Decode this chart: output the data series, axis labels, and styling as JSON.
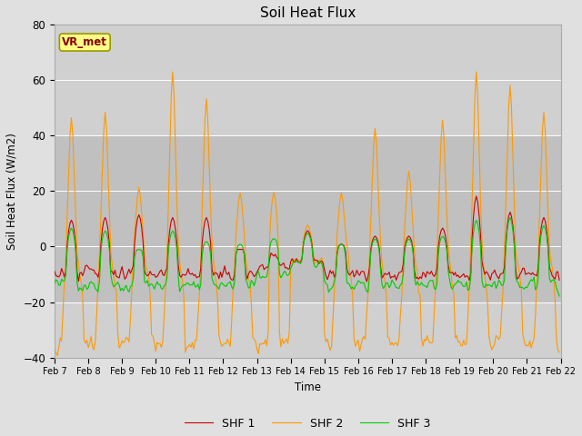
{
  "title": "Soil Heat Flux",
  "ylabel": "Soil Heat Flux (W/m2)",
  "xlabel": "Time",
  "ylim": [
    -40,
    80
  ],
  "xlim": [
    0,
    360
  ],
  "yticks": [
    -40,
    -20,
    0,
    20,
    40,
    60,
    80
  ],
  "xtick_labels": [
    "Feb 7",
    "Feb 8",
    "Feb 9",
    "Feb 10",
    "Feb 11",
    "Feb 12",
    "Feb 13",
    "Feb 14",
    "Feb 15",
    "Feb 16",
    "Feb 17",
    "Feb 18",
    "Feb 19",
    "Feb 20",
    "Feb 21",
    "Feb 22"
  ],
  "xtick_positions": [
    0,
    24,
    48,
    72,
    96,
    120,
    144,
    168,
    192,
    216,
    240,
    264,
    288,
    312,
    336,
    360
  ],
  "series_colors": [
    "#cc0000",
    "#ff9900",
    "#00cc00"
  ],
  "series_labels": [
    "SHF 1",
    "SHF 2",
    "SHF 3"
  ],
  "bg_color_outer": "#e0e0e0",
  "bg_color_inner": "#d0d0d0",
  "band_lower": -20,
  "band_upper": 40,
  "band_color": "#c0c0c0",
  "vr_met_label": "VR_met",
  "vr_met_color": "#880000",
  "vr_met_bg": "#ffff88",
  "line_width": 0.8
}
